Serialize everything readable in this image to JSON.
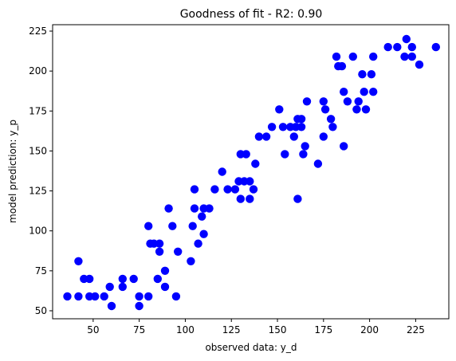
{
  "chart_data": {
    "type": "scatter",
    "title": "Goodness of fit -  R2: 0.90",
    "xlabel": "observed data: y_d",
    "ylabel": "model prediction: y_p",
    "xlim": [
      28,
      243
    ],
    "ylim": [
      45,
      229
    ],
    "xticks": [
      50,
      75,
      100,
      125,
      150,
      175,
      200,
      225
    ],
    "yticks": [
      50,
      75,
      100,
      125,
      150,
      175,
      200,
      225
    ],
    "grid": false,
    "marker_color": "#0000ff",
    "points": [
      [
        36,
        59
      ],
      [
        42,
        59
      ],
      [
        42,
        81
      ],
      [
        45,
        70
      ],
      [
        48,
        70
      ],
      [
        48,
        59
      ],
      [
        51,
        59
      ],
      [
        56,
        59
      ],
      [
        59,
        65
      ],
      [
        60,
        53
      ],
      [
        66,
        70
      ],
      [
        66,
        65
      ],
      [
        72,
        70
      ],
      [
        75,
        59
      ],
      [
        75,
        53
      ],
      [
        80,
        103
      ],
      [
        80,
        59
      ],
      [
        81,
        92
      ],
      [
        83,
        92
      ],
      [
        85,
        70
      ],
      [
        86,
        92
      ],
      [
        86,
        87
      ],
      [
        89,
        75
      ],
      [
        89,
        65
      ],
      [
        91,
        114
      ],
      [
        93,
        103
      ],
      [
        95,
        59
      ],
      [
        96,
        87
      ],
      [
        103,
        81
      ],
      [
        104,
        103
      ],
      [
        105,
        114
      ],
      [
        105,
        126
      ],
      [
        107,
        92
      ],
      [
        109,
        109
      ],
      [
        110,
        114
      ],
      [
        110,
        98
      ],
      [
        113,
        114
      ],
      [
        116,
        126
      ],
      [
        120,
        137
      ],
      [
        123,
        126
      ],
      [
        127,
        126
      ],
      [
        129,
        131
      ],
      [
        130,
        120
      ],
      [
        130,
        148
      ],
      [
        132,
        131
      ],
      [
        133,
        148
      ],
      [
        135,
        131
      ],
      [
        135,
        120
      ],
      [
        137,
        126
      ],
      [
        138,
        142
      ],
      [
        140,
        159
      ],
      [
        144,
        159
      ],
      [
        147,
        165
      ],
      [
        151,
        176
      ],
      [
        153,
        165
      ],
      [
        154,
        148
      ],
      [
        157,
        165
      ],
      [
        159,
        159
      ],
      [
        160,
        165
      ],
      [
        161,
        170
      ],
      [
        161,
        120
      ],
      [
        163,
        170
      ],
      [
        163,
        165
      ],
      [
        164,
        148
      ],
      [
        165,
        153
      ],
      [
        166,
        181
      ],
      [
        172,
        142
      ],
      [
        175,
        181
      ],
      [
        175,
        159
      ],
      [
        176,
        176
      ],
      [
        179,
        170
      ],
      [
        180,
        165
      ],
      [
        182,
        209
      ],
      [
        183,
        203
      ],
      [
        185,
        203
      ],
      [
        186,
        187
      ],
      [
        186,
        153
      ],
      [
        188,
        181
      ],
      [
        191,
        209
      ],
      [
        193,
        176
      ],
      [
        194,
        181
      ],
      [
        196,
        198
      ],
      [
        197,
        187
      ],
      [
        198,
        176
      ],
      [
        201,
        198
      ],
      [
        202,
        187
      ],
      [
        202,
        209
      ],
      [
        210,
        215
      ],
      [
        215,
        215
      ],
      [
        219,
        209
      ],
      [
        220,
        220
      ],
      [
        223,
        215
      ],
      [
        223,
        209
      ],
      [
        227,
        204
      ],
      [
        236,
        215
      ]
    ]
  }
}
